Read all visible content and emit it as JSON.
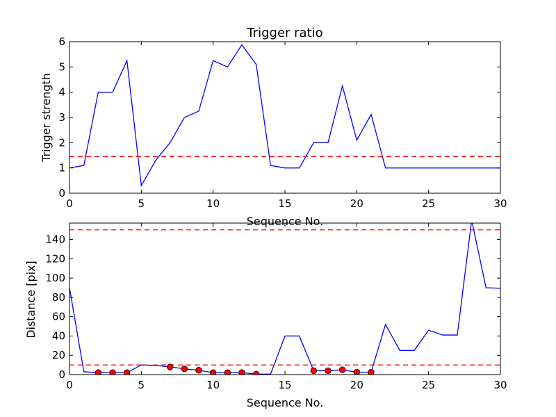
{
  "figure": {
    "background": "#ffffff"
  },
  "chart_data": [
    {
      "type": "line",
      "title": "Trigger ratio",
      "xlabel": "Sequence No.",
      "ylabel": "Trigger strength",
      "xlim": [
        0,
        30
      ],
      "ylim": [
        0,
        6
      ],
      "xticks": [
        0,
        5,
        10,
        15,
        20,
        25,
        30
      ],
      "yticks": [
        0,
        1,
        2,
        3,
        4,
        5,
        6
      ],
      "grid": false,
      "series": [
        {
          "style": "solid",
          "color": "#0000ff",
          "x": [
            0,
            1,
            2,
            3,
            4,
            5,
            6,
            7,
            8,
            9,
            10,
            11,
            12,
            13,
            14,
            15,
            16,
            17,
            18,
            19,
            20,
            21,
            22,
            23,
            24,
            25,
            26,
            27,
            28,
            29,
            30
          ],
          "y": [
            1.0,
            1.1,
            4.0,
            4.0,
            5.25,
            0.3,
            1.3,
            2.0,
            3.0,
            3.25,
            5.25,
            5.0,
            5.88,
            5.1,
            1.1,
            1.0,
            1.0,
            2.0,
            2.0,
            4.25,
            2.1,
            3.12,
            1.0,
            1.0,
            1.0,
            1.0,
            1.0,
            1.0,
            1.0,
            1.0,
            1.0
          ]
        }
      ],
      "hlines": [
        {
          "y": 1.45,
          "color": "#ff0000",
          "style": "dashed"
        }
      ]
    },
    {
      "type": "line",
      "title": "",
      "xlabel": "Sequence No.",
      "ylabel": "Distance [pix]",
      "xlim": [
        0,
        30
      ],
      "ylim": [
        0,
        157
      ],
      "xticks": [
        0,
        5,
        10,
        15,
        20,
        25,
        30
      ],
      "yticks": [
        0,
        20,
        40,
        60,
        80,
        100,
        120,
        140
      ],
      "grid": false,
      "series": [
        {
          "style": "solid",
          "color": "#0000ff",
          "x": [
            0,
            1,
            2,
            3,
            4,
            5,
            6,
            7,
            8,
            9,
            10,
            11,
            12,
            13,
            14,
            15,
            16,
            17,
            18,
            19,
            20,
            21,
            22,
            23,
            24,
            25,
            26,
            27,
            28,
            29,
            30
          ],
          "y": [
            90,
            3,
            2,
            2,
            2,
            10,
            9.5,
            8,
            6,
            4.5,
            2,
            2,
            2,
            0.5,
            0.5,
            40,
            40,
            4,
            4,
            5,
            2.5,
            2.5,
            52,
            25,
            25,
            46,
            41,
            41,
            160,
            90,
            89.5
          ]
        },
        {
          "style": "markers",
          "color": "#ff0000",
          "x": [
            2,
            3,
            4,
            7,
            8,
            9,
            10,
            11,
            12,
            13,
            17,
            18,
            19,
            20,
            21
          ],
          "y": [
            2,
            2,
            2,
            8,
            6,
            4.5,
            2,
            2,
            2,
            0.5,
            4,
            4,
            5,
            2.5,
            2.5
          ]
        }
      ],
      "hlines": [
        {
          "y": 10,
          "color": "#ff0000",
          "style": "dashed"
        },
        {
          "y": 150,
          "color": "#ff0000",
          "style": "dashed"
        }
      ]
    }
  ]
}
